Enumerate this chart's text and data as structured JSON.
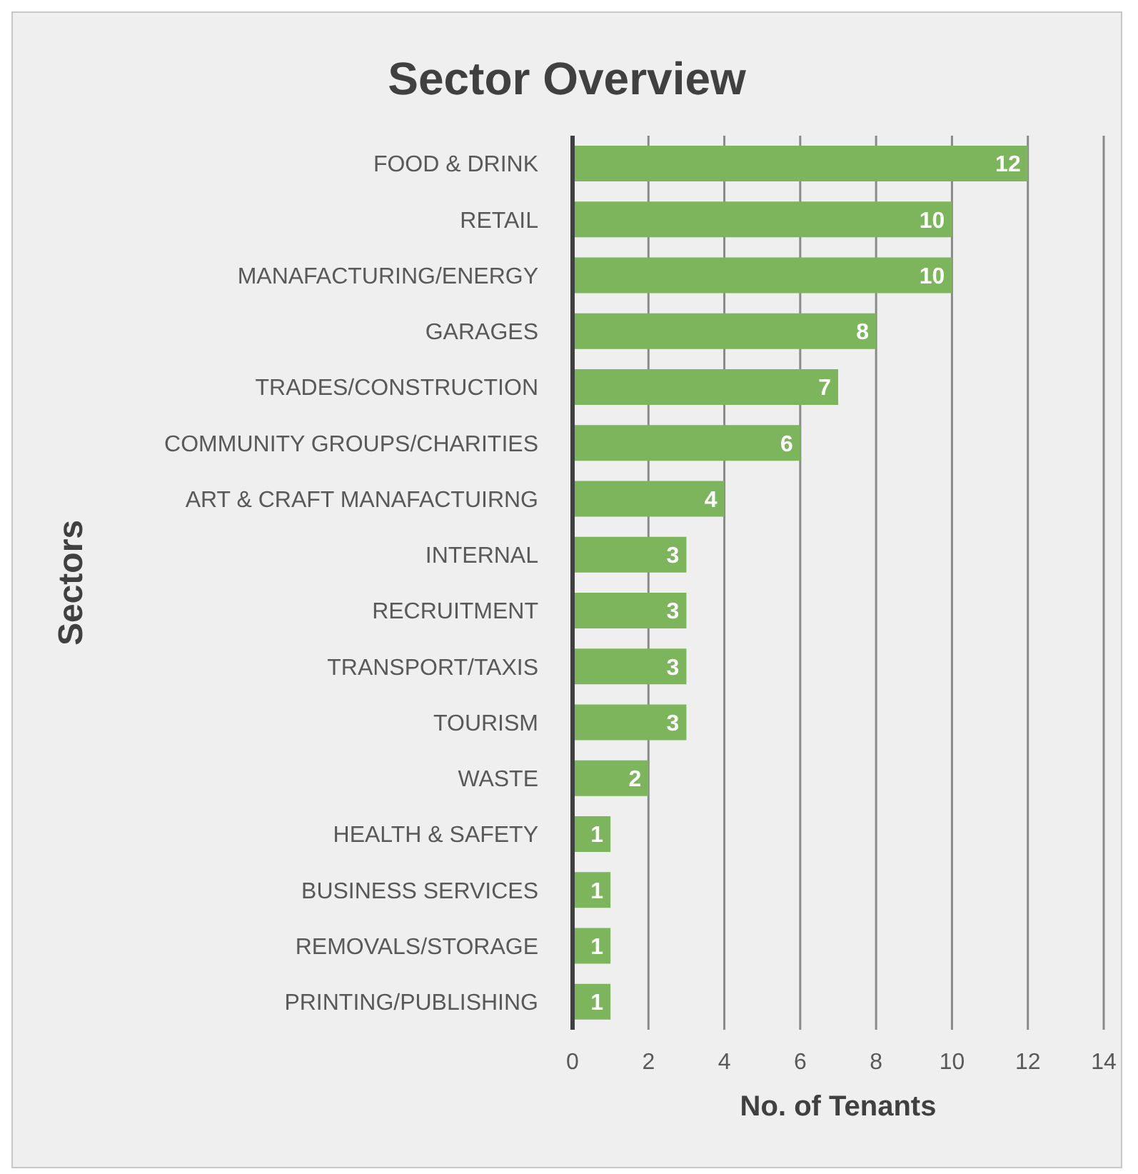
{
  "chart_data": {
    "type": "bar",
    "orientation": "horizontal",
    "title": "Sector Overview",
    "xlabel": "No. of Tenants",
    "ylabel": "Sectors",
    "categories": [
      "FOOD & DRINK",
      "RETAIL",
      "MANAFACTURING/ENERGY",
      "GARAGES",
      "TRADES/CONSTRUCTION",
      "COMMUNITY GROUPS/CHARITIES",
      "ART & CRAFT MANAFACTUIRNG",
      "INTERNAL",
      "RECRUITMENT",
      "TRANSPORT/TAXIS",
      "TOURISM",
      "WASTE",
      "HEALTH & SAFETY",
      "BUSINESS SERVICES",
      "REMOVALS/STORAGE",
      "PRINTING/PUBLISHING"
    ],
    "values": [
      12,
      10,
      10,
      8,
      7,
      6,
      4,
      3,
      3,
      3,
      3,
      2,
      1,
      1,
      1,
      1
    ],
    "color": "#7cb55b",
    "xlim": [
      0,
      14
    ],
    "xticks": [
      0,
      2,
      4,
      6,
      8,
      10,
      12,
      14
    ],
    "grid": "x",
    "data_labels": true
  }
}
